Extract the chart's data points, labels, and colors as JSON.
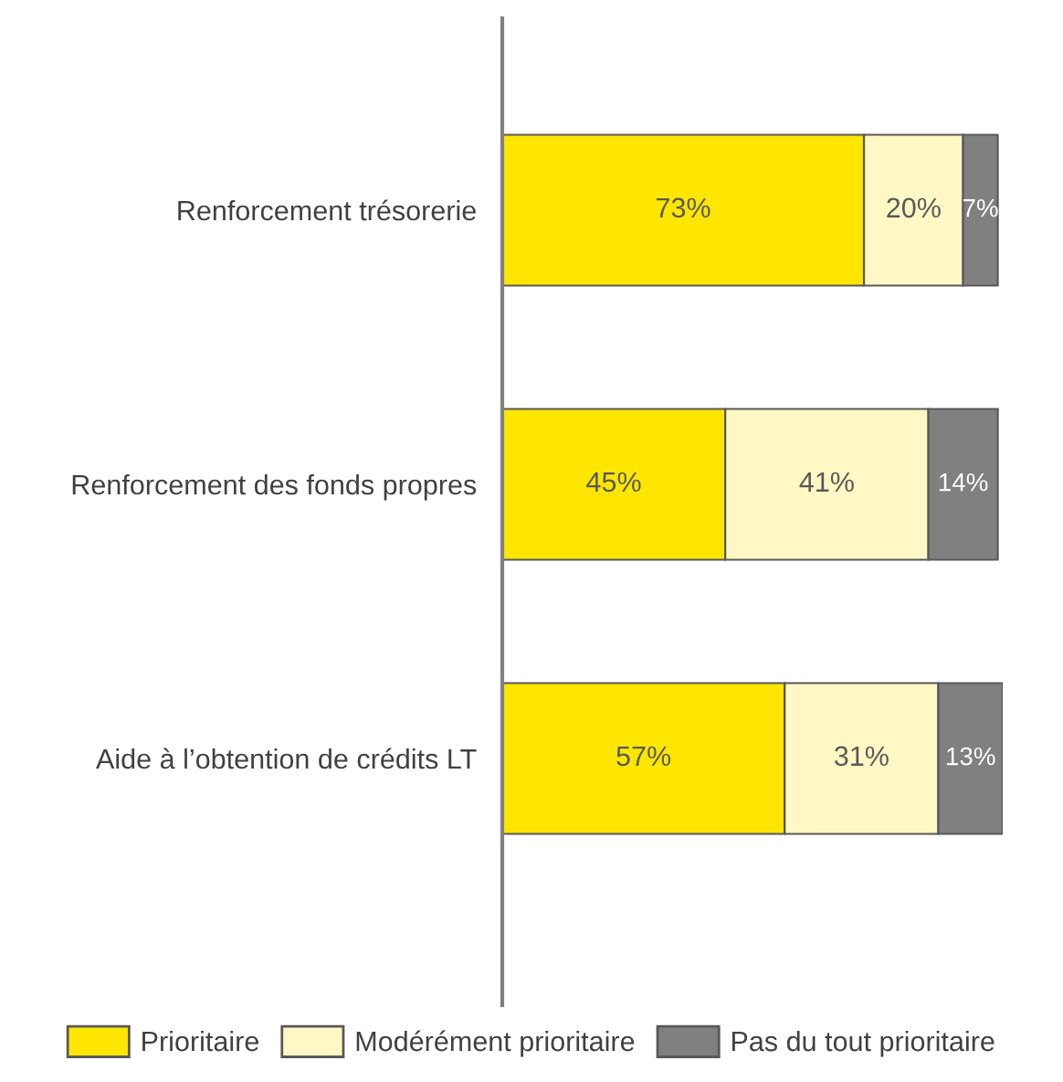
{
  "chart_data": {
    "type": "bar",
    "orientation": "horizontal",
    "stacked": true,
    "categories": [
      "Renforcement trésorerie",
      "Renforcement des fonds propres",
      "Aide à l’obtention de crédits LT"
    ],
    "series": [
      {
        "name": "Prioritaire",
        "color": "#ffe600",
        "values": [
          73,
          45,
          57
        ],
        "value_labels": [
          "73%",
          "45%",
          "57%"
        ]
      },
      {
        "name": "Modérément prioritaire",
        "color": "#fff8c4",
        "values": [
          20,
          41,
          31
        ],
        "value_labels": [
          "20%",
          "41%",
          "31%"
        ]
      },
      {
        "name": "Pas du tout prioritaire",
        "color": "#808080",
        "values": [
          7,
          14,
          13
        ],
        "value_labels": [
          "7%",
          "14%",
          "13%"
        ]
      }
    ],
    "legend": "bottom",
    "grid": false,
    "tick_labels": "y"
  }
}
